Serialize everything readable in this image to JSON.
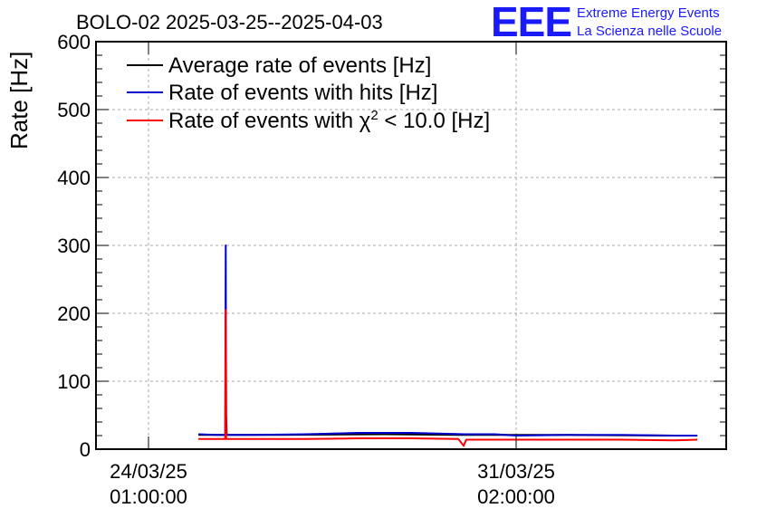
{
  "chart_data": {
    "type": "line",
    "title": "BOLO-02 2025-03-25--2025-04-03",
    "ylabel": "Rate [Hz]",
    "xlabel": "",
    "ylim": [
      0,
      600
    ],
    "yticks": [
      "0",
      "100",
      "200",
      "300",
      "400",
      "500",
      "600"
    ],
    "x_range_days": [
      -1.0,
      11.0
    ],
    "xticks": [
      {
        "day": 0,
        "line1": "24/03/25",
        "line2": "01:00:00"
      },
      {
        "day": 7,
        "line1": "31/03/25",
        "line2": "02:00:00"
      }
    ],
    "grid": true,
    "legend_position": "top-left",
    "x_unit": "days since 24/03/25 01:00:00",
    "series": [
      {
        "name": "Average rate of events [Hz]",
        "color": "#000000",
        "points": [
          [
            0.95,
            21
          ],
          [
            1.47,
            21
          ],
          [
            1.48,
            47
          ],
          [
            1.49,
            21
          ],
          [
            2.5,
            21
          ],
          [
            4.5,
            22
          ],
          [
            6.0,
            21
          ],
          [
            8.0,
            21
          ],
          [
            10.0,
            20
          ],
          [
            10.45,
            20
          ]
        ]
      },
      {
        "name": "Rate of events with hits [Hz]",
        "color": "#0000cc",
        "points": [
          [
            0.95,
            22
          ],
          [
            1.3,
            21
          ],
          [
            1.46,
            21
          ],
          [
            1.47,
            300
          ],
          [
            1.48,
            21
          ],
          [
            2.0,
            21
          ],
          [
            3.0,
            22
          ],
          [
            4.0,
            24
          ],
          [
            5.0,
            24
          ],
          [
            6.0,
            22
          ],
          [
            6.6,
            22
          ],
          [
            7.0,
            20
          ],
          [
            8.0,
            21
          ],
          [
            9.0,
            21
          ],
          [
            10.0,
            20
          ],
          [
            10.45,
            20
          ]
        ]
      },
      {
        "name": "Rate of events with χ² < 10.0 [Hz]",
        "color": "#ff0000",
        "points": [
          [
            0.95,
            15
          ],
          [
            1.3,
            15
          ],
          [
            1.46,
            15
          ],
          [
            1.47,
            205
          ],
          [
            1.48,
            15
          ],
          [
            2.0,
            15
          ],
          [
            3.0,
            15
          ],
          [
            4.0,
            16
          ],
          [
            5.0,
            16
          ],
          [
            5.9,
            15
          ],
          [
            6.0,
            5
          ],
          [
            6.05,
            14
          ],
          [
            7.0,
            14
          ],
          [
            8.0,
            14
          ],
          [
            9.0,
            14
          ],
          [
            10.0,
            13
          ],
          [
            10.45,
            14
          ]
        ]
      }
    ],
    "legend_labels": {
      "s1": "Average rate of events [Hz]",
      "s2": "Rate of events with hits [Hz]",
      "s3_prefix": "Rate of events with ",
      "s3_chi": "χ",
      "s3_sup": "2",
      "s3_suffix": " < 10.0 [Hz]"
    }
  },
  "logo": {
    "letters": "EEE",
    "line1": "Extreme Energy Events",
    "line2": "La Scienza nelle Scuole"
  },
  "colors": {
    "black": "#000000",
    "blue": "#0000cc",
    "red": "#ff0000",
    "logo_blue": "#1a1aff",
    "grid": "#aaaaaa"
  }
}
